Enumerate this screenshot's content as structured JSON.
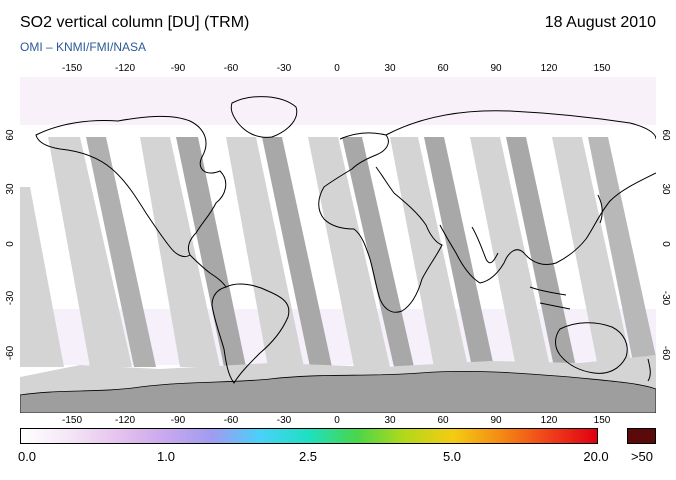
{
  "header": {
    "title": "SO2 vertical column [DU] (TRM)",
    "date": "18 August 2010",
    "credit": "OMI  –  KNMI/FMI/NASA"
  },
  "map": {
    "lon_ticks": [
      "-150",
      "-120",
      "-90",
      "-60",
      "-30",
      "0",
      "30",
      "60",
      "90",
      "120",
      "150"
    ],
    "lat_ticks": [
      "60",
      "30",
      "0",
      "-30",
      "-60"
    ],
    "colors": {
      "ocean": "#ffffff",
      "swath_light": "#d4d4d4",
      "swath_dark": "#a8a8a8",
      "antarctica": "#9e9e9e",
      "coast": "#000000"
    }
  },
  "colorbar": {
    "labels": [
      "0.0",
      "1.0",
      "2.5",
      "5.0",
      "20.0",
      ">50"
    ],
    "overflow_color": "#5a0a0a",
    "stops": [
      "#ffffff",
      "#f4e6f6",
      "#e6c4ee",
      "#c9a8ee",
      "#9f9cf0",
      "#48d2f8",
      "#1ee0c0",
      "#49d64a",
      "#b4d81a",
      "#f4cc12",
      "#f48a14",
      "#f0401a",
      "#e00010"
    ]
  }
}
